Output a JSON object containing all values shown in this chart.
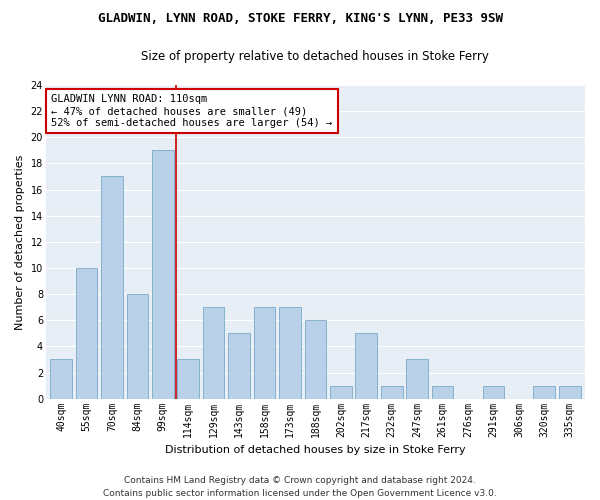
{
  "title": "GLADWIN, LYNN ROAD, STOKE FERRY, KING'S LYNN, PE33 9SW",
  "subtitle": "Size of property relative to detached houses in Stoke Ferry",
  "xlabel": "Distribution of detached houses by size in Stoke Ferry",
  "ylabel": "Number of detached properties",
  "categories": [
    "40sqm",
    "55sqm",
    "70sqm",
    "84sqm",
    "99sqm",
    "114sqm",
    "129sqm",
    "143sqm",
    "158sqm",
    "173sqm",
    "188sqm",
    "202sqm",
    "217sqm",
    "232sqm",
    "247sqm",
    "261sqm",
    "276sqm",
    "291sqm",
    "306sqm",
    "320sqm",
    "335sqm"
  ],
  "values": [
    3,
    10,
    17,
    8,
    19,
    3,
    7,
    5,
    7,
    7,
    6,
    1,
    5,
    1,
    3,
    1,
    0,
    1,
    0,
    1,
    1
  ],
  "bar_color": "#b8d0e8",
  "bar_edge_color": "#7aaac8",
  "highlight_line_color": "#cc0000",
  "annotation_line1": "GLADWIN LYNN ROAD: 110sqm",
  "annotation_line2": "← 47% of detached houses are smaller (49)",
  "annotation_line3": "52% of semi-detached houses are larger (54) →",
  "annotation_box_color": "#ffffff",
  "annotation_box_edge_color": "#cc0000",
  "ylim": [
    0,
    24
  ],
  "yticks": [
    0,
    2,
    4,
    6,
    8,
    10,
    12,
    14,
    16,
    18,
    20,
    22,
    24
  ],
  "footer1": "Contains HM Land Registry data © Crown copyright and database right 2024.",
  "footer2": "Contains public sector information licensed under the Open Government Licence v3.0.",
  "fig_background": "#ffffff",
  "plot_background": "#e8eef5",
  "grid_color": "#ffffff",
  "title_fontsize": 9,
  "subtitle_fontsize": 8.5,
  "ylabel_fontsize": 8,
  "xlabel_fontsize": 8,
  "tick_fontsize": 7,
  "annotation_fontsize": 7.5,
  "footer_fontsize": 6.5
}
